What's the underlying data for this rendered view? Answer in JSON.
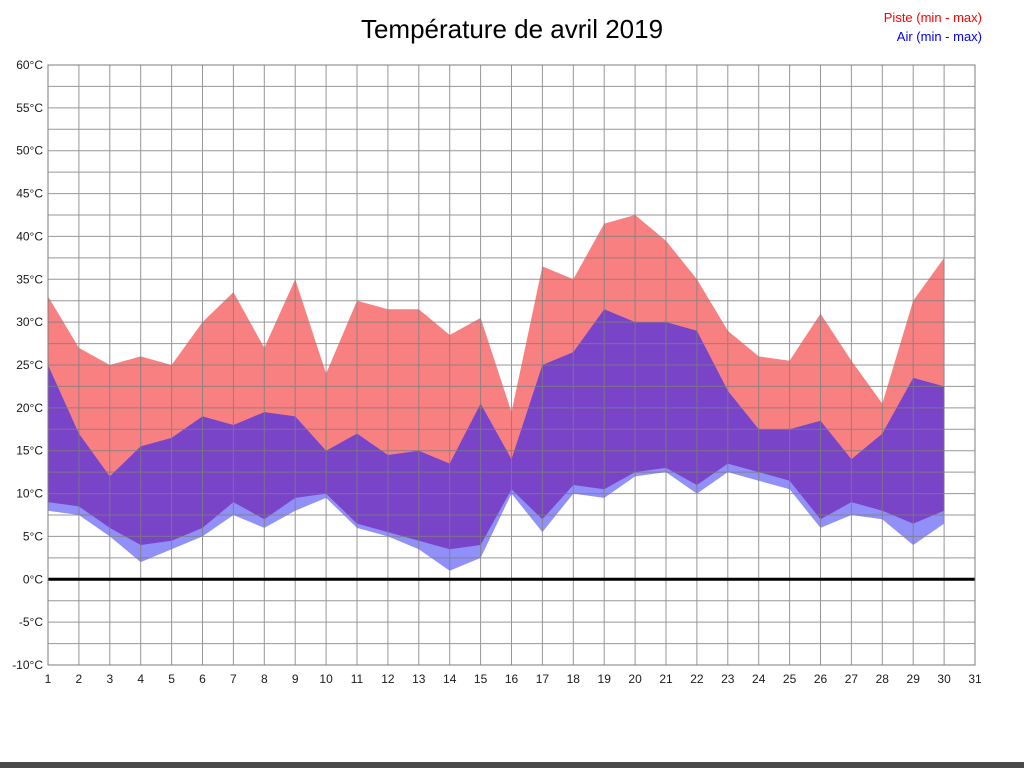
{
  "chart_data": {
    "type": "area",
    "title": "Température de avril 2019",
    "legend": [
      {
        "label": "Piste (min - max)",
        "color": "#ff0000",
        "band_color": "#f88080"
      },
      {
        "label": "Air (min - max)",
        "color": "#0000ff",
        "band_color": "#9090f8"
      }
    ],
    "overlap_color": "#7a44c8",
    "grid_color": "#7d7d7d",
    "background": "#ffffff",
    "x": [
      1,
      2,
      3,
      4,
      5,
      6,
      7,
      8,
      9,
      10,
      11,
      12,
      13,
      14,
      15,
      16,
      17,
      18,
      19,
      20,
      21,
      22,
      23,
      24,
      25,
      26,
      27,
      28,
      29,
      30
    ],
    "series": [
      {
        "name": "Piste min",
        "values": [
          9,
          8.5,
          6,
          4,
          4.5,
          6,
          9,
          7,
          9.5,
          10,
          6.5,
          5.5,
          4.5,
          3.5,
          4,
          10.5,
          7,
          11,
          10.5,
          12.5,
          13,
          11,
          13.5,
          12.5,
          11.5,
          7,
          9,
          8,
          6.5,
          8
        ]
      },
      {
        "name": "Piste max",
        "values": [
          33,
          27,
          25,
          26,
          25,
          30,
          33.5,
          27,
          35,
          24,
          32.5,
          31.5,
          31.5,
          28.5,
          30.5,
          19.5,
          36.5,
          35,
          41.5,
          42.5,
          39.5,
          35,
          29,
          26,
          25.5,
          31,
          25.5,
          20.5,
          32.5,
          37.5
        ]
      },
      {
        "name": "Air min",
        "values": [
          8,
          7.5,
          5,
          2,
          3.5,
          5,
          7.5,
          6,
          8,
          9.5,
          6,
          5,
          3.5,
          1,
          2.5,
          10,
          5.5,
          10,
          9.5,
          12,
          12.5,
          10,
          12.5,
          11.5,
          10.5,
          6,
          7.5,
          7,
          4,
          6.5
        ]
      },
      {
        "name": "Air max",
        "values": [
          25,
          17,
          12,
          15.5,
          16.5,
          19,
          18,
          19.5,
          19,
          15,
          17,
          14.5,
          15,
          13.5,
          20.5,
          14,
          25,
          26.5,
          31.5,
          30,
          30,
          29,
          22,
          17.5,
          17.5,
          18.5,
          14,
          17,
          23.5,
          22.5
        ]
      }
    ],
    "xlim": [
      1,
      31
    ],
    "ylim": [
      -10,
      60
    ],
    "x_ticks": [
      1,
      2,
      3,
      4,
      5,
      6,
      7,
      8,
      9,
      10,
      11,
      12,
      13,
      14,
      15,
      16,
      17,
      18,
      19,
      20,
      21,
      22,
      23,
      24,
      25,
      26,
      27,
      28,
      29,
      30,
      31
    ],
    "y_ticks": [
      60,
      55,
      50,
      45,
      40,
      35,
      30,
      25,
      20,
      15,
      10,
      5,
      0,
      -5,
      -10
    ],
    "y_tick_suffix": "°C",
    "minor_grid_step_y": 2.5,
    "zero_line": 0,
    "grid": true,
    "legend_position": "top-right"
  }
}
